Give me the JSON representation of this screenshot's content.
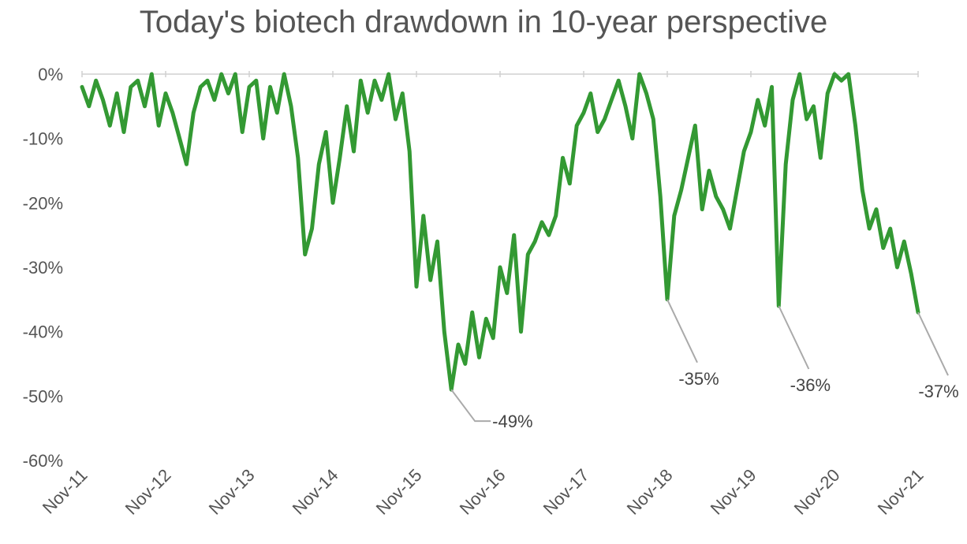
{
  "chart_data": {
    "type": "line",
    "title": "Today's biotech drawdown in 10-year perspective",
    "xlabel": "",
    "ylabel": "",
    "x_ticks": [
      "Nov-11",
      "Nov-12",
      "Nov-13",
      "Nov-14",
      "Nov-15",
      "Nov-16",
      "Nov-17",
      "Nov-18",
      "Nov-19",
      "Nov-20",
      "Nov-21"
    ],
    "y_ticks": [
      "0%",
      "-10%",
      "-20%",
      "-30%",
      "-40%",
      "-50%",
      "-60%"
    ],
    "ylim": [
      -60,
      0
    ],
    "xlim": [
      "2011-11",
      "2021-11"
    ],
    "grid": false,
    "legend": "none",
    "series": [
      {
        "color": "#339933",
        "points": [
          [
            "2011-11",
            -2
          ],
          [
            "2011-12",
            -5
          ],
          [
            "2012-01",
            -1
          ],
          [
            "2012-02",
            -4
          ],
          [
            "2012-03",
            -8
          ],
          [
            "2012-04",
            -3
          ],
          [
            "2012-05",
            -9
          ],
          [
            "2012-06",
            -2
          ],
          [
            "2012-07",
            -1
          ],
          [
            "2012-08",
            -5
          ],
          [
            "2012-09",
            0
          ],
          [
            "2012-10",
            -8
          ],
          [
            "2012-11",
            -3
          ],
          [
            "2012-12",
            -6
          ],
          [
            "2013-01",
            -10
          ],
          [
            "2013-02",
            -14
          ],
          [
            "2013-03",
            -6
          ],
          [
            "2013-04",
            -2
          ],
          [
            "2013-05",
            -1
          ],
          [
            "2013-06",
            -4
          ],
          [
            "2013-07",
            0
          ],
          [
            "2013-08",
            -3
          ],
          [
            "2013-09",
            0
          ],
          [
            "2013-10",
            -9
          ],
          [
            "2013-11",
            -2
          ],
          [
            "2013-12",
            -1
          ],
          [
            "2014-01",
            -10
          ],
          [
            "2014-02",
            -2
          ],
          [
            "2014-03",
            -6
          ],
          [
            "2014-04",
            0
          ],
          [
            "2014-05",
            -5
          ],
          [
            "2014-06",
            -13
          ],
          [
            "2014-07",
            -28
          ],
          [
            "2014-08",
            -24
          ],
          [
            "2014-09",
            -14
          ],
          [
            "2014-10",
            -9
          ],
          [
            "2014-11",
            -20
          ],
          [
            "2014-12",
            -13
          ],
          [
            "2015-01",
            -5
          ],
          [
            "2015-02",
            -12
          ],
          [
            "2015-03",
            -1
          ],
          [
            "2015-04",
            -6
          ],
          [
            "2015-05",
            -1
          ],
          [
            "2015-06",
            -4
          ],
          [
            "2015-07",
            0
          ],
          [
            "2015-08",
            -7
          ],
          [
            "2015-09",
            -3
          ],
          [
            "2015-10",
            -12
          ],
          [
            "2015-11",
            -33
          ],
          [
            "2015-12",
            -22
          ],
          [
            "2016-01",
            -32
          ],
          [
            "2016-02",
            -26
          ],
          [
            "2016-03",
            -40
          ],
          [
            "2016-04",
            -49
          ],
          [
            "2016-05",
            -42
          ],
          [
            "2016-06",
            -45
          ],
          [
            "2016-07",
            -37
          ],
          [
            "2016-08",
            -44
          ],
          [
            "2016-09",
            -38
          ],
          [
            "2016-10",
            -41
          ],
          [
            "2016-11",
            -30
          ],
          [
            "2016-12",
            -34
          ],
          [
            "2017-01",
            -25
          ],
          [
            "2017-02",
            -40
          ],
          [
            "2017-03",
            -28
          ],
          [
            "2017-04",
            -26
          ],
          [
            "2017-05",
            -23
          ],
          [
            "2017-06",
            -25
          ],
          [
            "2017-07",
            -22
          ],
          [
            "2017-08",
            -13
          ],
          [
            "2017-09",
            -17
          ],
          [
            "2017-10",
            -8
          ],
          [
            "2017-11",
            -6
          ],
          [
            "2017-12",
            -3
          ],
          [
            "2018-01",
            -9
          ],
          [
            "2018-02",
            -7
          ],
          [
            "2018-03",
            -4
          ],
          [
            "2018-04",
            -1
          ],
          [
            "2018-05",
            -5
          ],
          [
            "2018-06",
            -10
          ],
          [
            "2018-07",
            0
          ],
          [
            "2018-08",
            -3
          ],
          [
            "2018-09",
            -7
          ],
          [
            "2018-10",
            -19
          ],
          [
            "2018-11",
            -35
          ],
          [
            "2018-12",
            -22
          ],
          [
            "2019-01",
            -18
          ],
          [
            "2019-02",
            -13
          ],
          [
            "2019-03",
            -8
          ],
          [
            "2019-04",
            -21
          ],
          [
            "2019-05",
            -15
          ],
          [
            "2019-06",
            -19
          ],
          [
            "2019-07",
            -21
          ],
          [
            "2019-08",
            -24
          ],
          [
            "2019-09",
            -18
          ],
          [
            "2019-10",
            -12
          ],
          [
            "2019-11",
            -9
          ],
          [
            "2019-12",
            -4
          ],
          [
            "2020-01",
            -8
          ],
          [
            "2020-02",
            -2
          ],
          [
            "2020-03",
            -36
          ],
          [
            "2020-04",
            -14
          ],
          [
            "2020-05",
            -4
          ],
          [
            "2020-06",
            0
          ],
          [
            "2020-07",
            -7
          ],
          [
            "2020-08",
            -5
          ],
          [
            "2020-09",
            -13
          ],
          [
            "2020-10",
            -3
          ],
          [
            "2020-11",
            0
          ],
          [
            "2020-12",
            -1
          ],
          [
            "2021-01",
            0
          ],
          [
            "2021-02",
            -8
          ],
          [
            "2021-03",
            -18
          ],
          [
            "2021-04",
            -24
          ],
          [
            "2021-05",
            -21
          ],
          [
            "2021-06",
            -27
          ],
          [
            "2021-07",
            -24
          ],
          [
            "2021-08",
            -30
          ],
          [
            "2021-09",
            -26
          ],
          [
            "2021-10",
            -31
          ],
          [
            "2021-11",
            -37
          ]
        ]
      }
    ],
    "annotations": [
      {
        "text": "-49%",
        "x": "2016-04",
        "y": -49
      },
      {
        "text": "-35%",
        "x": "2018-11",
        "y": -35
      },
      {
        "text": "-36%",
        "x": "2020-03",
        "y": -36
      },
      {
        "text": "-37%",
        "x": "2021-11",
        "y": -37
      }
    ]
  }
}
